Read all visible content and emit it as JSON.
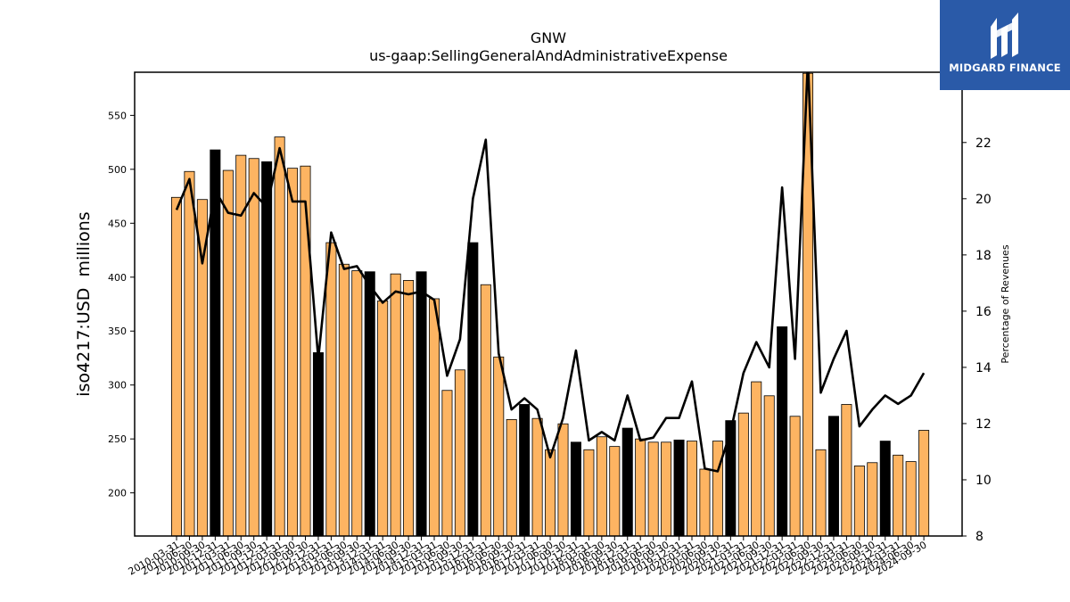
{
  "logo": {
    "text": "MIDGARD FINANCE",
    "background": "#2a5aa8"
  },
  "chart_data": {
    "type": "bar",
    "title": "GNW",
    "subtitle": "us-gaap:SellingGeneralAndAdministrativeExpense",
    "ylabel": "iso4217:USD  millions",
    "y2label": "Percentage of Revenues",
    "ylim": [
      160,
      590
    ],
    "y2lim": [
      8,
      24.5
    ],
    "yticks": [
      200,
      250,
      300,
      350,
      400,
      450,
      500,
      550
    ],
    "y2ticks": [
      8,
      10,
      12,
      14,
      16,
      18,
      20,
      22
    ],
    "colors": {
      "quarter": "#fdb462",
      "annual": "#000000",
      "line": "#000000"
    },
    "categories": [
      "2010-03-31",
      "2010-06-30",
      "2010-09-30",
      "2010-12-31",
      "2011-03-31",
      "2011-06-30",
      "2011-09-30",
      "2011-12-31",
      "2012-03-31",
      "2012-06-30",
      "2012-09-30",
      "2012-12-31",
      "2013-03-31",
      "2013-06-30",
      "2013-09-30",
      "2013-12-31",
      "2014-03-31",
      "2014-06-30",
      "2014-09-30",
      "2014-12-31",
      "2015-03-31",
      "2015-06-30",
      "2015-09-30",
      "2015-12-31",
      "2016-03-31",
      "2016-06-30",
      "2016-09-30",
      "2016-12-31",
      "2017-03-31",
      "2017-06-30",
      "2017-09-30",
      "2017-12-31",
      "2018-03-31",
      "2018-06-30",
      "2018-09-30",
      "2018-12-31",
      "2019-03-31",
      "2019-06-30",
      "2019-09-30",
      "2019-12-31",
      "2020-03-31",
      "2020-06-30",
      "2020-09-30",
      "2020-12-31",
      "2021-03-31",
      "2021-06-30",
      "2021-09-30",
      "2021-12-31",
      "2022-03-31",
      "2022-06-30",
      "2022-09-30",
      "2022-12-31",
      "2023-03-31",
      "2023-06-30",
      "2023-09-30",
      "2023-12-31",
      "2024-03-31",
      "2024-06-30",
      "2024-09-30"
    ],
    "series": [
      {
        "values": [
          474,
          498,
          472,
          518,
          499,
          513,
          510,
          507,
          530,
          501,
          503,
          330,
          432,
          412,
          406,
          405,
          378,
          403,
          397,
          405,
          380,
          295,
          314,
          432,
          393,
          326,
          268,
          282,
          269,
          240,
          264,
          247,
          240,
          252,
          243,
          260,
          250,
          247,
          247,
          249,
          248,
          222,
          248,
          267,
          274,
          303,
          290,
          354,
          271,
          589,
          240,
          271,
          282,
          225,
          228,
          248,
          235,
          229,
          258
        ],
        "annual": [
          false,
          false,
          false,
          true,
          false,
          false,
          false,
          true,
          false,
          false,
          false,
          true,
          false,
          false,
          false,
          true,
          false,
          false,
          false,
          true,
          false,
          false,
          false,
          true,
          false,
          false,
          false,
          true,
          false,
          false,
          false,
          true,
          false,
          false,
          false,
          true,
          false,
          false,
          false,
          true,
          false,
          false,
          false,
          true,
          false,
          false,
          false,
          true,
          false,
          false,
          false,
          true,
          false,
          false,
          false,
          true,
          false,
          false,
          false
        ]
      },
      {
        "name": "Percentage of Revenues",
        "axis": "right",
        "values": [
          19.6,
          20.7,
          17.7,
          20.3,
          19.5,
          19.4,
          20.2,
          19.7,
          21.8,
          19.9,
          19.9,
          14.3,
          18.8,
          17.5,
          17.6,
          16.9,
          16.3,
          16.7,
          16.6,
          16.7,
          16.4,
          13.7,
          15.0,
          20.0,
          22.1,
          14.5,
          12.5,
          12.9,
          12.5,
          10.8,
          12.2,
          14.6,
          11.4,
          11.7,
          11.4,
          13.0,
          11.4,
          11.5,
          12.2,
          12.2,
          13.5,
          10.4,
          10.3,
          11.7,
          13.8,
          14.9,
          14.0,
          20.4,
          14.3,
          24.9,
          13.1,
          14.3,
          15.3,
          11.9,
          12.5,
          13.0,
          12.7,
          13.0,
          13.8
        ]
      }
    ]
  }
}
